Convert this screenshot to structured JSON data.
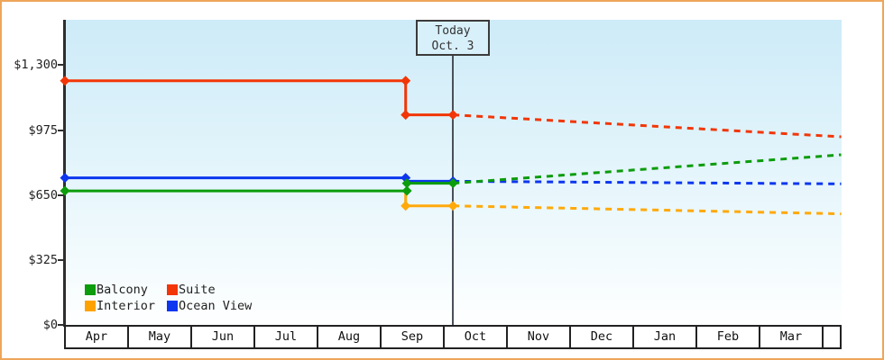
{
  "colors": {
    "frame_border": "#eda65a",
    "plot_gradient_top": "#cdebf8",
    "plot_gradient_bottom": "#feffff",
    "axis": "#2f2f2f",
    "today_line": "#49505a",
    "today_box_fill": "#d8f0fa"
  },
  "chart_data": {
    "type": "line",
    "title": "",
    "description": "Cabin price history (solid) and forecast after today (dashed) by cabin category",
    "x_axis": {
      "months": [
        "Apr",
        "May",
        "Jun",
        "Jul",
        "Aug",
        "Sep",
        "Oct",
        "Nov",
        "Dec",
        "Jan",
        "Feb",
        "Mar"
      ]
    },
    "y_axis": {
      "tick_labels": [
        "$0",
        "$325",
        "$650",
        "$975",
        "$1,300"
      ],
      "tick_values": [
        0,
        325,
        650,
        975,
        1300
      ],
      "unit": "USD"
    },
    "annotation": {
      "line1": "Today",
      "line2": "Oct. 3",
      "month_fraction": 6.14
    },
    "grid": false,
    "legend_position": "bottom-left",
    "legend": [
      {
        "label": "Balcony",
        "color": "#0c9c0c"
      },
      {
        "label": "Suite",
        "color": "#f23607"
      },
      {
        "label": "Interior",
        "color": "#ffa200"
      },
      {
        "label": "Ocean View",
        "color": "#0d36ee"
      }
    ],
    "series": [
      {
        "key": "interior",
        "name": "Interior",
        "color": "#ffa90a",
        "solid": [
          [
            5.39,
            670
          ],
          [
            5.39,
            595
          ],
          [
            6.14,
            595
          ]
        ],
        "dashed": [
          [
            6.14,
            595
          ],
          [
            12.28,
            555
          ]
        ],
        "markers": [
          [
            5.39,
            595
          ],
          [
            6.14,
            595
          ]
        ]
      },
      {
        "key": "suite",
        "name": "Suite",
        "color": "#f23607",
        "solid": [
          [
            0,
            1220
          ],
          [
            5.39,
            1220
          ],
          [
            5.39,
            1050
          ],
          [
            6.14,
            1050
          ]
        ],
        "dashed": [
          [
            6.14,
            1050
          ],
          [
            12.28,
            940
          ]
        ],
        "markers": [
          [
            0,
            1220
          ],
          [
            5.39,
            1220
          ],
          [
            5.39,
            1050
          ],
          [
            6.14,
            1050
          ]
        ]
      },
      {
        "key": "ocean-view",
        "name": "Ocean View",
        "color": "#0d36ee",
        "solid": [
          [
            0,
            735
          ],
          [
            5.39,
            735
          ],
          [
            5.39,
            718
          ],
          [
            6.14,
            718
          ]
        ],
        "dashed": [
          [
            6.14,
            718
          ],
          [
            12.28,
            705
          ]
        ],
        "markers": [
          [
            0,
            735
          ],
          [
            5.39,
            735
          ],
          [
            6.14,
            718
          ]
        ]
      },
      {
        "key": "balcony",
        "name": "Balcony",
        "color": "#0c9c0c",
        "solid": [
          [
            0,
            670
          ],
          [
            5.41,
            670
          ],
          [
            5.41,
            708
          ],
          [
            6.14,
            708
          ]
        ],
        "dashed": [
          [
            6.14,
            708
          ],
          [
            12.28,
            850
          ]
        ],
        "markers": [
          [
            0,
            670
          ],
          [
            5.41,
            670
          ],
          [
            5.41,
            708
          ],
          [
            6.14,
            708
          ]
        ]
      }
    ]
  }
}
